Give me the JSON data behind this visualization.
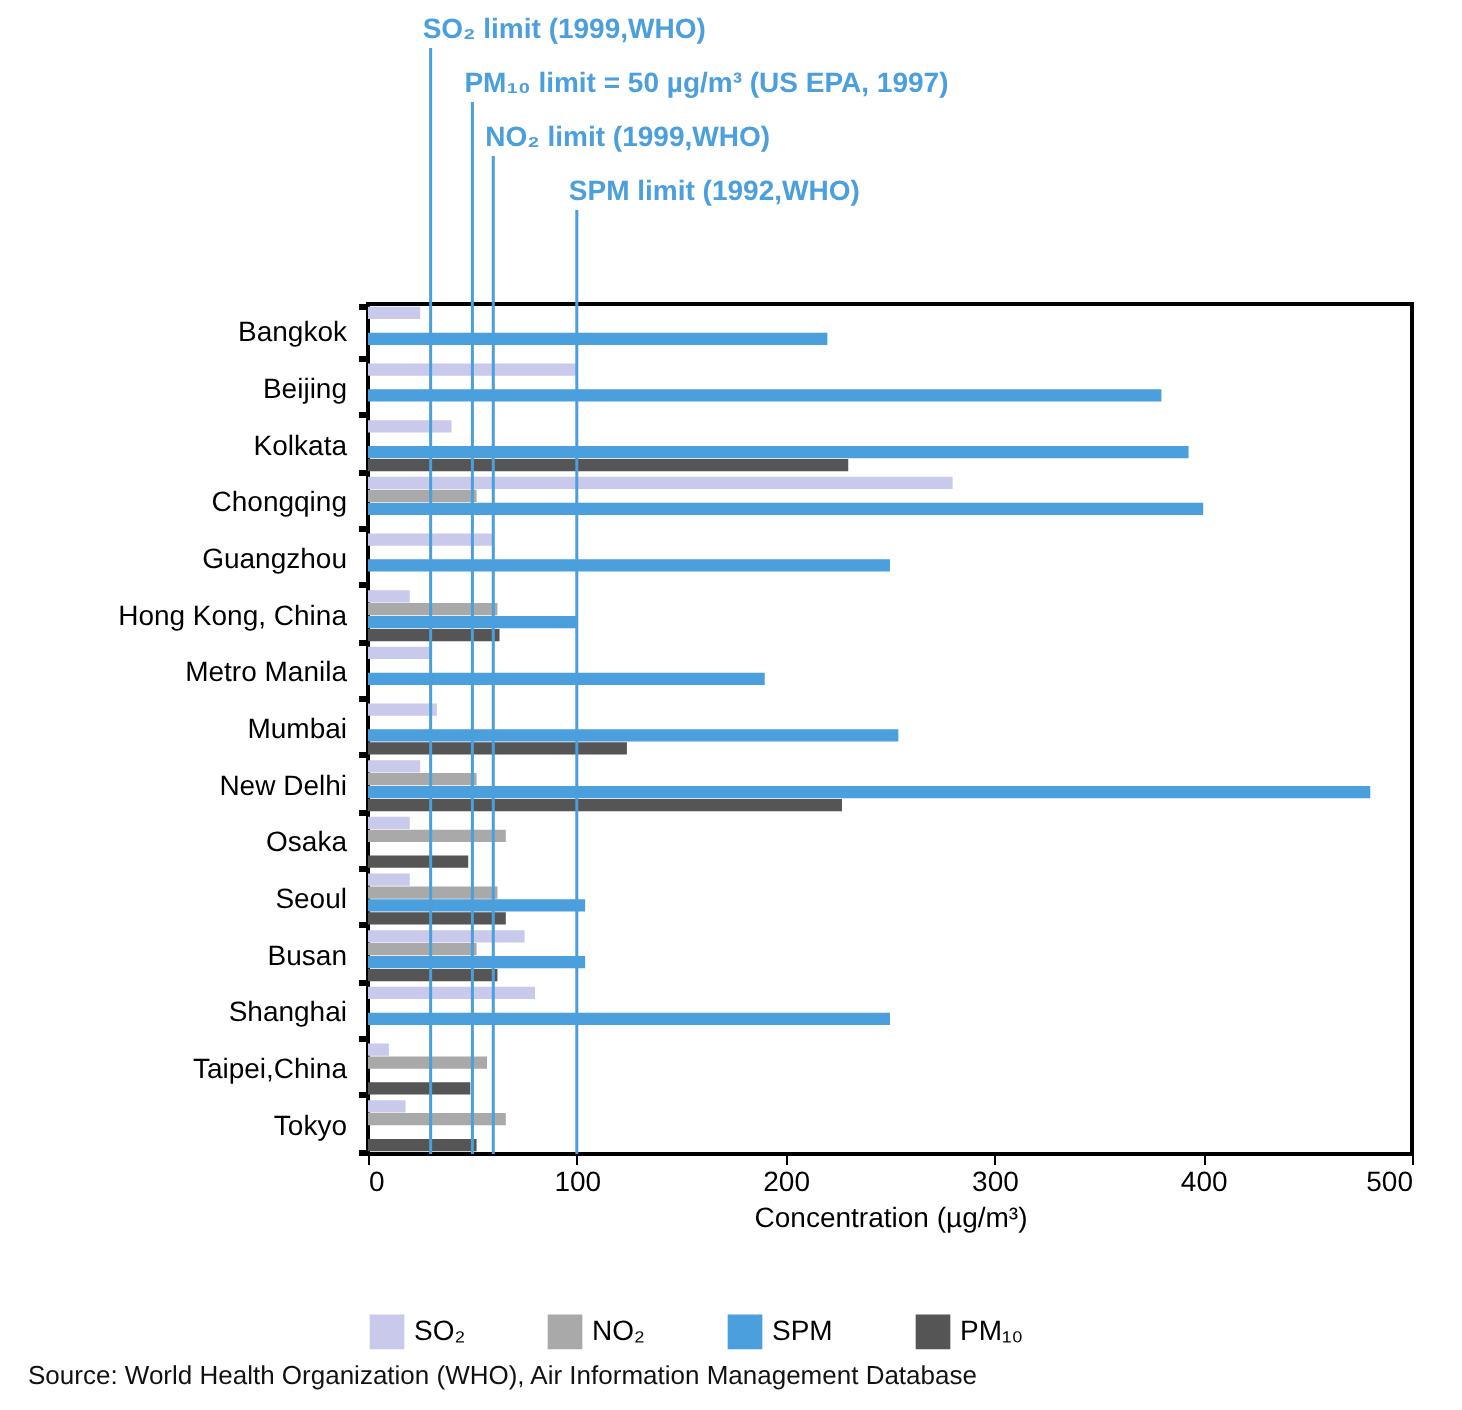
{
  "chart_data": {
    "type": "bar",
    "orientation": "horizontal",
    "xlabel": "Concentration (µg/m³)",
    "categories": [
      "Bangkok",
      "Beijing",
      "Kolkata",
      "Chongqing",
      "Guangzhou",
      "Hong Kong, China",
      "Metro Manila",
      "Mumbai",
      "New Delhi",
      "Osaka",
      "Seoul",
      "Busan",
      "Shanghai",
      "Taipei,China",
      "Tokyo"
    ],
    "series": [
      {
        "name": "SO₂",
        "color": "#c9c9ec",
        "values": [
          25,
          100,
          40,
          280,
          60,
          20,
          30,
          33,
          25,
          20,
          20,
          75,
          80,
          10,
          18
        ]
      },
      {
        "name": "NO₂",
        "color": "#a9a9a9",
        "values": [
          null,
          null,
          null,
          52,
          null,
          62,
          null,
          null,
          52,
          66,
          62,
          52,
          null,
          57,
          66
        ]
      },
      {
        "name": "SPM",
        "color": "#4a9fdc",
        "values": [
          220,
          380,
          393,
          400,
          250,
          100,
          190,
          254,
          480,
          null,
          104,
          104,
          250,
          null,
          null
        ]
      },
      {
        "name": "PM₁₀",
        "color": "#555555",
        "values": [
          null,
          null,
          230,
          null,
          null,
          63,
          null,
          124,
          227,
          48,
          66,
          62,
          null,
          49,
          52
        ]
      }
    ],
    "xlim": [
      0,
      500
    ],
    "xticks": [
      0,
      100,
      200,
      300,
      400,
      500
    ],
    "grid": false,
    "legend": "bottom",
    "ref_lines": [
      {
        "axis": "x",
        "value": 30,
        "label": "SO₂ limit (1999,WHO)",
        "color": "#4a9fdc"
      },
      {
        "axis": "x",
        "value": 50,
        "label": "PM₁₀ limit = 50 µg/m³ (US EPA, 1997)",
        "color": "#4a9fdc"
      },
      {
        "axis": "x",
        "value": 60,
        "label": "NO₂ limit (1999,WHO)",
        "color": "#4a9fdc"
      },
      {
        "axis": "x",
        "value": 100,
        "label": "SPM limit (1992,WHO)",
        "color": "#4a9fdc"
      }
    ],
    "annotations": [
      "Source: World Health Organization (WHO), Air Information Management Database"
    ]
  }
}
